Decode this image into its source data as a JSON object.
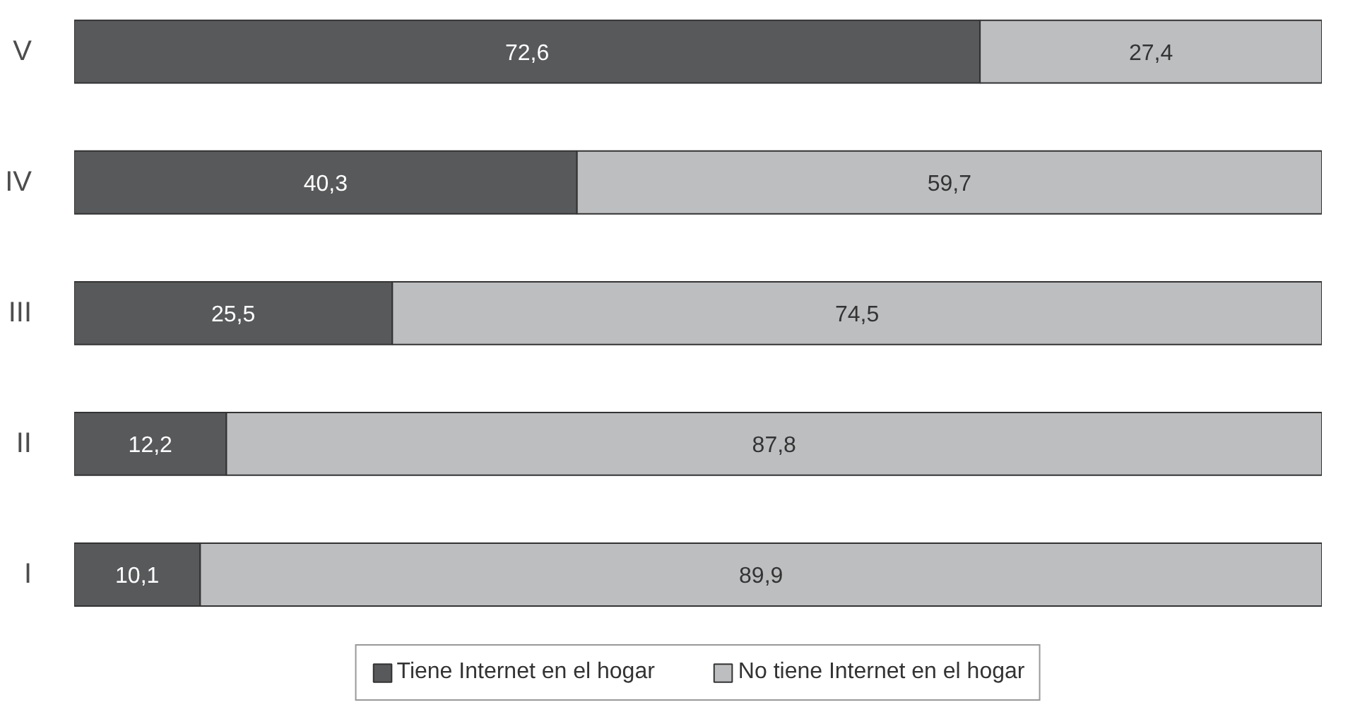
{
  "chart_data": {
    "type": "bar",
    "orientation": "horizontal",
    "stacked": true,
    "categories": [
      "V",
      "IV",
      "III",
      "II",
      "I"
    ],
    "series": [
      {
        "name": "Tiene Internet en el hogar",
        "color": "#58595b",
        "values": [
          72.6,
          40.3,
          25.5,
          12.2,
          10.1
        ],
        "value_labels": [
          "72,6",
          "40,3",
          "25,5",
          "12,2",
          "10,1"
        ]
      },
      {
        "name": "No tiene Internet en el hogar",
        "color": "#bcbec0",
        "values": [
          27.4,
          59.7,
          74.5,
          87.8,
          89.9
        ],
        "value_labels": [
          "27,4",
          "59,7",
          "74,5",
          "87,8",
          "89,9"
        ]
      }
    ],
    "xlim": [
      0,
      100
    ],
    "legend": "bottom",
    "tick_labels": "y"
  }
}
